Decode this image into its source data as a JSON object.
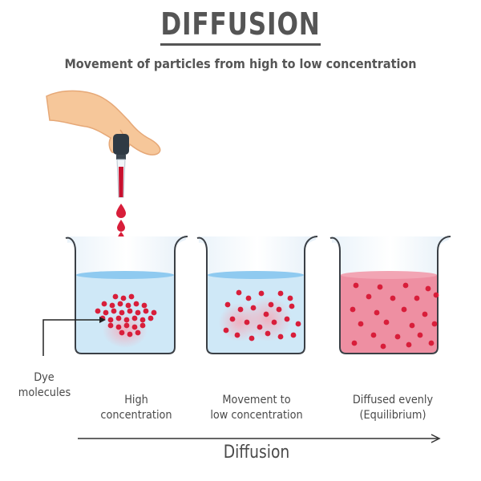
{
  "title": "DIFFUSION",
  "subtitle": "Movement of particles from high to low concentration",
  "dye_label": [
    "Dye",
    "molecules"
  ],
  "stages": [
    {
      "label": [
        "High",
        "concentration"
      ]
    },
    {
      "label": [
        "Movement to",
        "low concentration"
      ]
    },
    {
      "label": [
        "Diffused evenly",
        "(Equilibrium)"
      ]
    }
  ],
  "arrow_label": "Diffusion",
  "colors": {
    "dye": "#d81e3a",
    "water": "#cfe8f7",
    "water_surface": "#8fcaf0",
    "equilibrium_liquid": "#ee8fa2",
    "text": "#4a4a4a",
    "hand": "#f6c79a"
  },
  "icons": [
    "hand-icon",
    "dropper-icon",
    "beaker-icon",
    "arrow-icon"
  ]
}
